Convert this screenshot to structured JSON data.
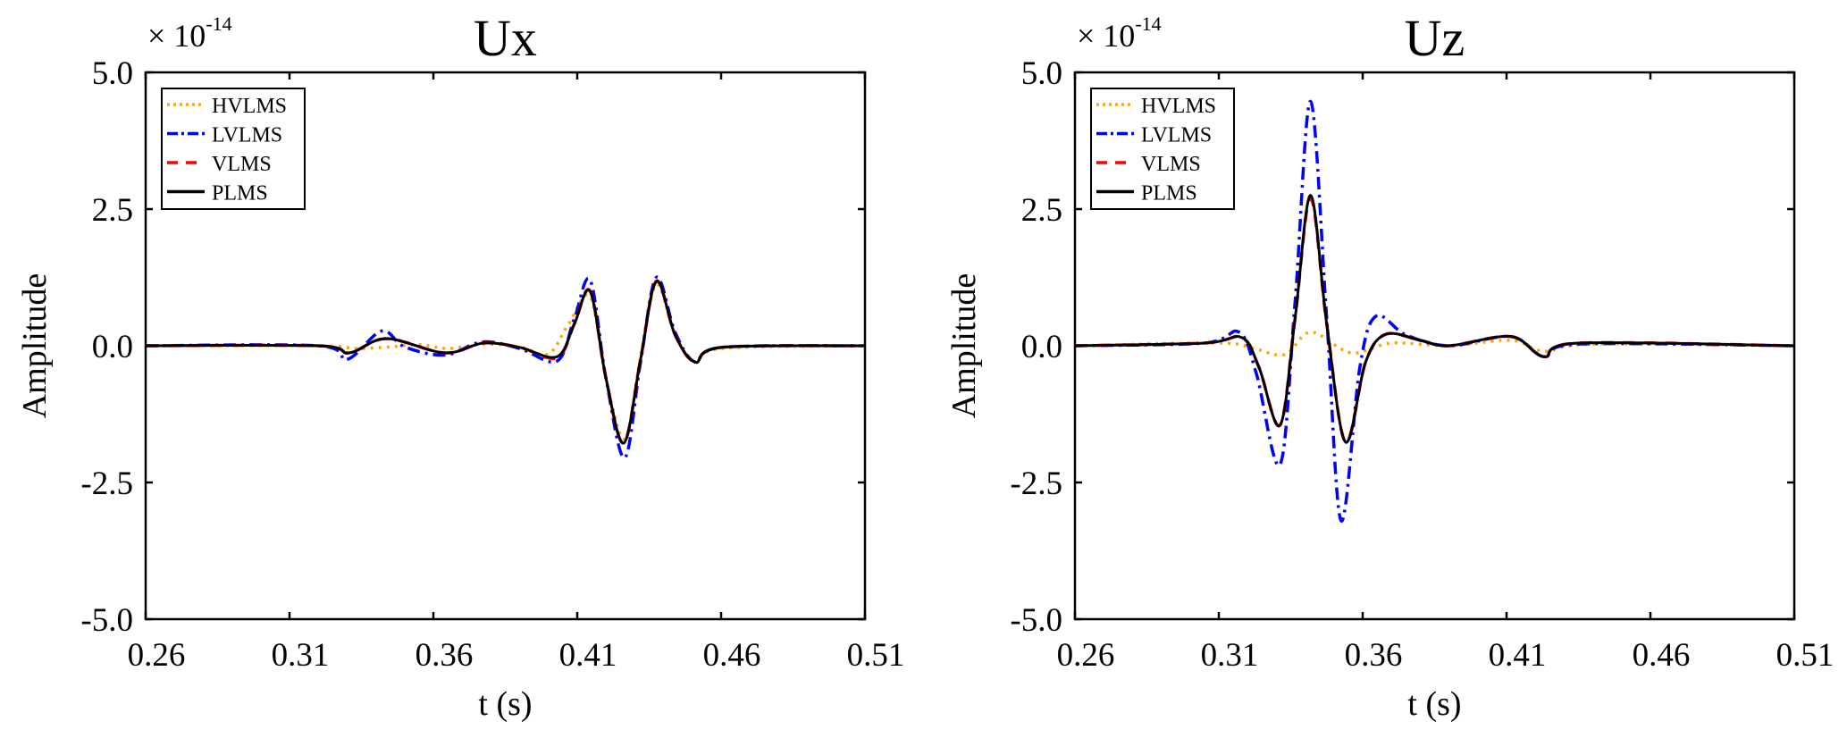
{
  "chart_data": [
    {
      "type": "line",
      "title": "Ux",
      "xlabel": "t  (s)",
      "ylabel": "Amplitude",
      "y_multiplier": "× 10",
      "y_multiplier_exponent": "-14",
      "xlim": [
        0.26,
        0.51
      ],
      "ylim": [
        -5.0,
        5.0
      ],
      "xticks": [
        "0.26",
        "0.31",
        "0.36",
        "0.41",
        "0.46",
        "0.51"
      ],
      "yticks": [
        "-5.0",
        "-2.5",
        "0.0",
        "2.5",
        "5.0"
      ],
      "grid": false,
      "legend_position": "top-left",
      "series": [
        {
          "name": "HVLMS",
          "color": "#FFA500",
          "style": "dotted",
          "points": [
            [
              0.26,
              0
            ],
            [
              0.32,
              0
            ],
            [
              0.333,
              -0.05
            ],
            [
              0.345,
              -0.02
            ],
            [
              0.355,
              0.02
            ],
            [
              0.365,
              -0.05
            ],
            [
              0.378,
              0.03
            ],
            [
              0.39,
              -0.02
            ],
            [
              0.4,
              -0.15
            ],
            [
              0.407,
              0.4
            ],
            [
              0.4145,
              0.9
            ],
            [
              0.42,
              -0.6
            ],
            [
              0.4265,
              -1.7
            ],
            [
              0.432,
              -0.2
            ],
            [
              0.4375,
              1.12
            ],
            [
              0.444,
              0.2
            ],
            [
              0.451,
              -0.3
            ],
            [
              0.46,
              -0.05
            ],
            [
              0.51,
              0
            ]
          ]
        },
        {
          "name": "LVLMS",
          "color": "#0000FF",
          "style": "dashdot",
          "points": [
            [
              0.26,
              0
            ],
            [
              0.32,
              0
            ],
            [
              0.33,
              -0.25
            ],
            [
              0.342,
              0.27
            ],
            [
              0.35,
              -0.02
            ],
            [
              0.364,
              -0.17
            ],
            [
              0.377,
              0.07
            ],
            [
              0.39,
              -0.05
            ],
            [
              0.403,
              -0.28
            ],
            [
              0.409,
              0.5
            ],
            [
              0.4145,
              1.2
            ],
            [
              0.42,
              -0.6
            ],
            [
              0.4265,
              -2.05
            ],
            [
              0.432,
              -0.3
            ],
            [
              0.4375,
              1.25
            ],
            [
              0.444,
              0.25
            ],
            [
              0.451,
              -0.3
            ],
            [
              0.46,
              -0.03
            ],
            [
              0.51,
              0
            ]
          ]
        },
        {
          "name": "VLMS",
          "color": "#FF0000",
          "style": "dashed",
          "points": [
            [
              0.26,
              0
            ],
            [
              0.32,
              0
            ],
            [
              0.3307,
              -0.13
            ],
            [
              0.3437,
              0.13
            ],
            [
              0.364,
              -0.13
            ],
            [
              0.3774,
              0.05
            ],
            [
              0.39,
              -0.03
            ],
            [
              0.403,
              -0.22
            ],
            [
              0.409,
              0.4
            ],
            [
              0.4145,
              1.0
            ],
            [
              0.42,
              -0.6
            ],
            [
              0.4262,
              -1.78
            ],
            [
              0.432,
              -0.25
            ],
            [
              0.4375,
              1.18
            ],
            [
              0.444,
              0.2
            ],
            [
              0.451,
              -0.3
            ],
            [
              0.46,
              -0.03
            ],
            [
              0.51,
              0
            ]
          ]
        },
        {
          "name": "PLMS",
          "color": "#000000",
          "style": "solid",
          "points": [
            [
              0.26,
              0
            ],
            [
              0.32,
              0
            ],
            [
              0.3307,
              -0.13
            ],
            [
              0.3437,
              0.13
            ],
            [
              0.364,
              -0.13
            ],
            [
              0.3774,
              0.05
            ],
            [
              0.39,
              -0.03
            ],
            [
              0.403,
              -0.2
            ],
            [
              0.409,
              0.4
            ],
            [
              0.4145,
              0.99
            ],
            [
              0.42,
              -0.6
            ],
            [
              0.4262,
              -1.78
            ],
            [
              0.432,
              -0.25
            ],
            [
              0.4375,
              1.18
            ],
            [
              0.444,
              0.2
            ],
            [
              0.451,
              -0.3
            ],
            [
              0.46,
              -0.03
            ],
            [
              0.51,
              0
            ]
          ]
        }
      ]
    },
    {
      "type": "line",
      "title": "Uz",
      "xlabel": "t  (s)",
      "ylabel": "Amplitude",
      "y_multiplier": "× 10",
      "y_multiplier_exponent": "-14",
      "xlim": [
        0.26,
        0.51
      ],
      "ylim": [
        -5.0,
        5.0
      ],
      "xticks": [
        "0.26",
        "0.31",
        "0.36",
        "0.41",
        "0.46",
        "0.51"
      ],
      "yticks": [
        "-5.0",
        "-2.5",
        "0.0",
        "2.5",
        "5.0"
      ],
      "grid": false,
      "legend_position": "top-left",
      "series": [
        {
          "name": "HVLMS",
          "color": "#FFA500",
          "style": "dotted",
          "points": [
            [
              0.26,
              0
            ],
            [
              0.31,
              0.05
            ],
            [
              0.322,
              -0.05
            ],
            [
              0.333,
              -0.16
            ],
            [
              0.342,
              0.25
            ],
            [
              0.356,
              -0.13
            ],
            [
              0.37,
              0.05
            ],
            [
              0.39,
              0
            ],
            [
              0.4115,
              0.1
            ],
            [
              0.423,
              -0.1
            ],
            [
              0.44,
              0.03
            ],
            [
              0.51,
              0
            ]
          ]
        },
        {
          "name": "LVLMS",
          "color": "#0000FF",
          "style": "dashdot",
          "points": [
            [
              0.26,
              0
            ],
            [
              0.305,
              0.05
            ],
            [
              0.317,
              0.25
            ],
            [
              0.323,
              -0.5
            ],
            [
              0.3313,
              -2.17
            ],
            [
              0.3365,
              0.8
            ],
            [
              0.3419,
              4.47
            ],
            [
              0.3475,
              0.5
            ],
            [
              0.3525,
              -3.2
            ],
            [
              0.359,
              -0.4
            ],
            [
              0.3646,
              0.54
            ],
            [
              0.375,
              0.2
            ],
            [
              0.39,
              0
            ],
            [
              0.4115,
              0.17
            ],
            [
              0.423,
              -0.2
            ],
            [
              0.435,
              0.03
            ],
            [
              0.51,
              0
            ]
          ]
        },
        {
          "name": "VLMS",
          "color": "#FF0000",
          "style": "dashed",
          "points": [
            [
              0.26,
              0
            ],
            [
              0.305,
              0.05
            ],
            [
              0.318,
              0.15
            ],
            [
              0.324,
              -0.4
            ],
            [
              0.3313,
              -1.45
            ],
            [
              0.3365,
              0.5
            ],
            [
              0.3419,
              2.7
            ],
            [
              0.3475,
              0.4
            ],
            [
              0.354,
              -1.76
            ],
            [
              0.361,
              -0.3
            ],
            [
              0.368,
              0.21
            ],
            [
              0.38,
              0.1
            ],
            [
              0.39,
              0
            ],
            [
              0.4115,
              0.17
            ],
            [
              0.423,
              -0.2
            ],
            [
              0.435,
              0.05
            ],
            [
              0.51,
              0
            ]
          ]
        },
        {
          "name": "PLMS",
          "color": "#000000",
          "style": "solid",
          "points": [
            [
              0.26,
              0
            ],
            [
              0.305,
              0.05
            ],
            [
              0.318,
              0.15
            ],
            [
              0.324,
              -0.4
            ],
            [
              0.3313,
              -1.45
            ],
            [
              0.3365,
              0.5
            ],
            [
              0.3419,
              2.75
            ],
            [
              0.3475,
              0.4
            ],
            [
              0.354,
              -1.76
            ],
            [
              0.361,
              -0.3
            ],
            [
              0.368,
              0.21
            ],
            [
              0.38,
              0.1
            ],
            [
              0.39,
              0
            ],
            [
              0.4115,
              0.17
            ],
            [
              0.423,
              -0.2
            ],
            [
              0.435,
              0.05
            ],
            [
              0.51,
              0
            ]
          ]
        }
      ]
    }
  ]
}
